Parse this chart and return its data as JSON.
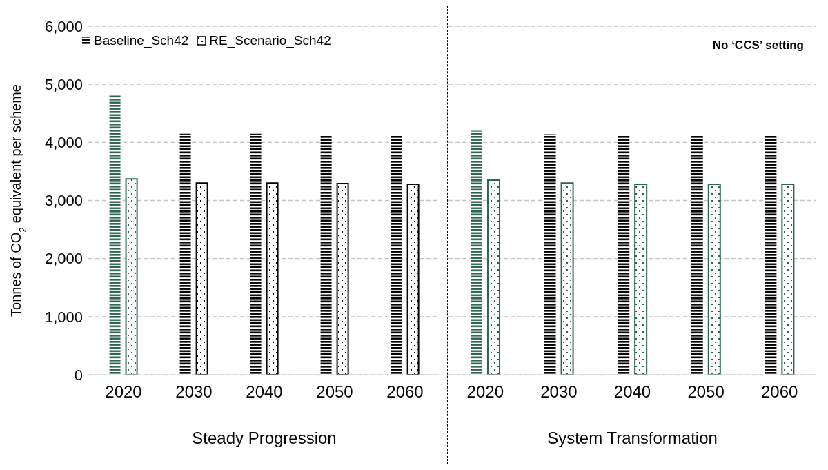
{
  "chart_data": [
    {
      "type": "bar",
      "xlabel": "Steady Progression",
      "ylabel": "Tonnes of CO$_{2}$ equivalent per scheme",
      "categories": [
        "2020",
        "2030",
        "2040",
        "2050",
        "2060"
      ],
      "series": [
        {
          "name": "Baseline_Sch42",
          "colors": [
            "#2e6454",
            "#000000",
            "#000000",
            "#000000",
            "#000000"
          ],
          "values": [
            4820,
            4150,
            4150,
            4120,
            4120
          ]
        },
        {
          "name": "RE_Scenario_Sch42",
          "colors": [
            "#2e6454",
            "#000000",
            "#000000",
            "#000000",
            "#000000"
          ],
          "values": [
            3370,
            3300,
            3300,
            3290,
            3280
          ]
        }
      ],
      "ylim": [
        0,
        6000
      ],
      "yticks": [
        {
          "value": 0,
          "label": "0"
        },
        {
          "value": 1000,
          "label": "1,000"
        },
        {
          "value": 2000,
          "label": "2,000"
        },
        {
          "value": 3000,
          "label": "3,000"
        },
        {
          "value": 4000,
          "label": "4,000"
        },
        {
          "value": 5000,
          "label": "5,000"
        },
        {
          "value": 6000,
          "label": "6,000"
        }
      ],
      "grid": "y",
      "legend": "top left"
    },
    {
      "type": "bar",
      "xlabel": "System Transformation",
      "annotations": [
        "No ‘CCS’ setting"
      ],
      "categories": [
        "2020",
        "2030",
        "2040",
        "2050",
        "2060"
      ],
      "series": [
        {
          "colors": [
            "#2e6454",
            "#000000",
            "#000000",
            "#000000",
            "#000000"
          ],
          "values": [
            4200,
            4140,
            4120,
            4120,
            4120
          ]
        },
        {
          "colors": [
            "#2e6454",
            "#2e6454",
            "#2e6454",
            "#2e6454",
            "#2e6454"
          ],
          "values": [
            3350,
            3300,
            3280,
            3280,
            3280
          ]
        }
      ],
      "ylim": [
        0,
        6000
      ],
      "yticks": [
        0,
        1000,
        2000,
        3000,
        4000,
        5000,
        6000
      ],
      "grid": "y",
      "tick_labels": "x"
    }
  ]
}
